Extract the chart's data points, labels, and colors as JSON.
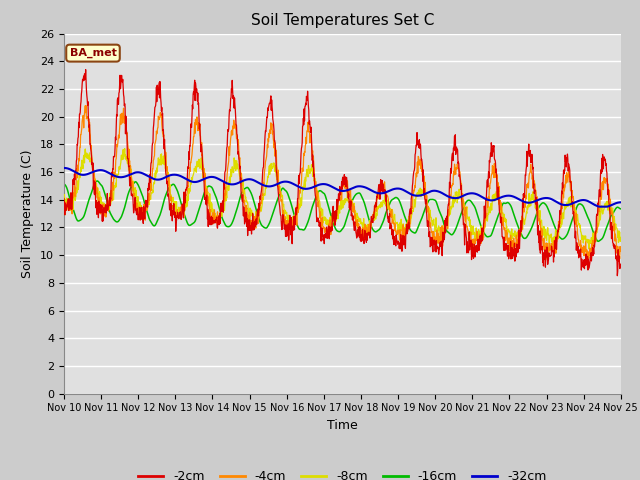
{
  "title": "Soil Temperatures Set C",
  "xlabel": "Time",
  "ylabel": "Soil Temperature (C)",
  "ylim": [
    0,
    26
  ],
  "yticks": [
    0,
    2,
    4,
    6,
    8,
    10,
    12,
    14,
    16,
    18,
    20,
    22,
    24,
    26
  ],
  "xtick_labels": [
    "Nov 10",
    "Nov 11",
    "Nov 12",
    "Nov 13",
    "Nov 14",
    "Nov 15",
    "Nov 16",
    "Nov 17",
    "Nov 18",
    "Nov 19",
    "Nov 20",
    "Nov 21",
    "Nov 22",
    "Nov 23",
    "Nov 24",
    "Nov 25"
  ],
  "colors": {
    "-2cm": "#dd0000",
    "-4cm": "#ff8800",
    "-8cm": "#dddd00",
    "-16cm": "#00bb00",
    "-32cm": "#0000cc"
  },
  "legend_label": "BA_met",
  "fig_bg": "#cccccc",
  "ax_bg": "#e0e0e0",
  "grid_color": "#ffffff"
}
